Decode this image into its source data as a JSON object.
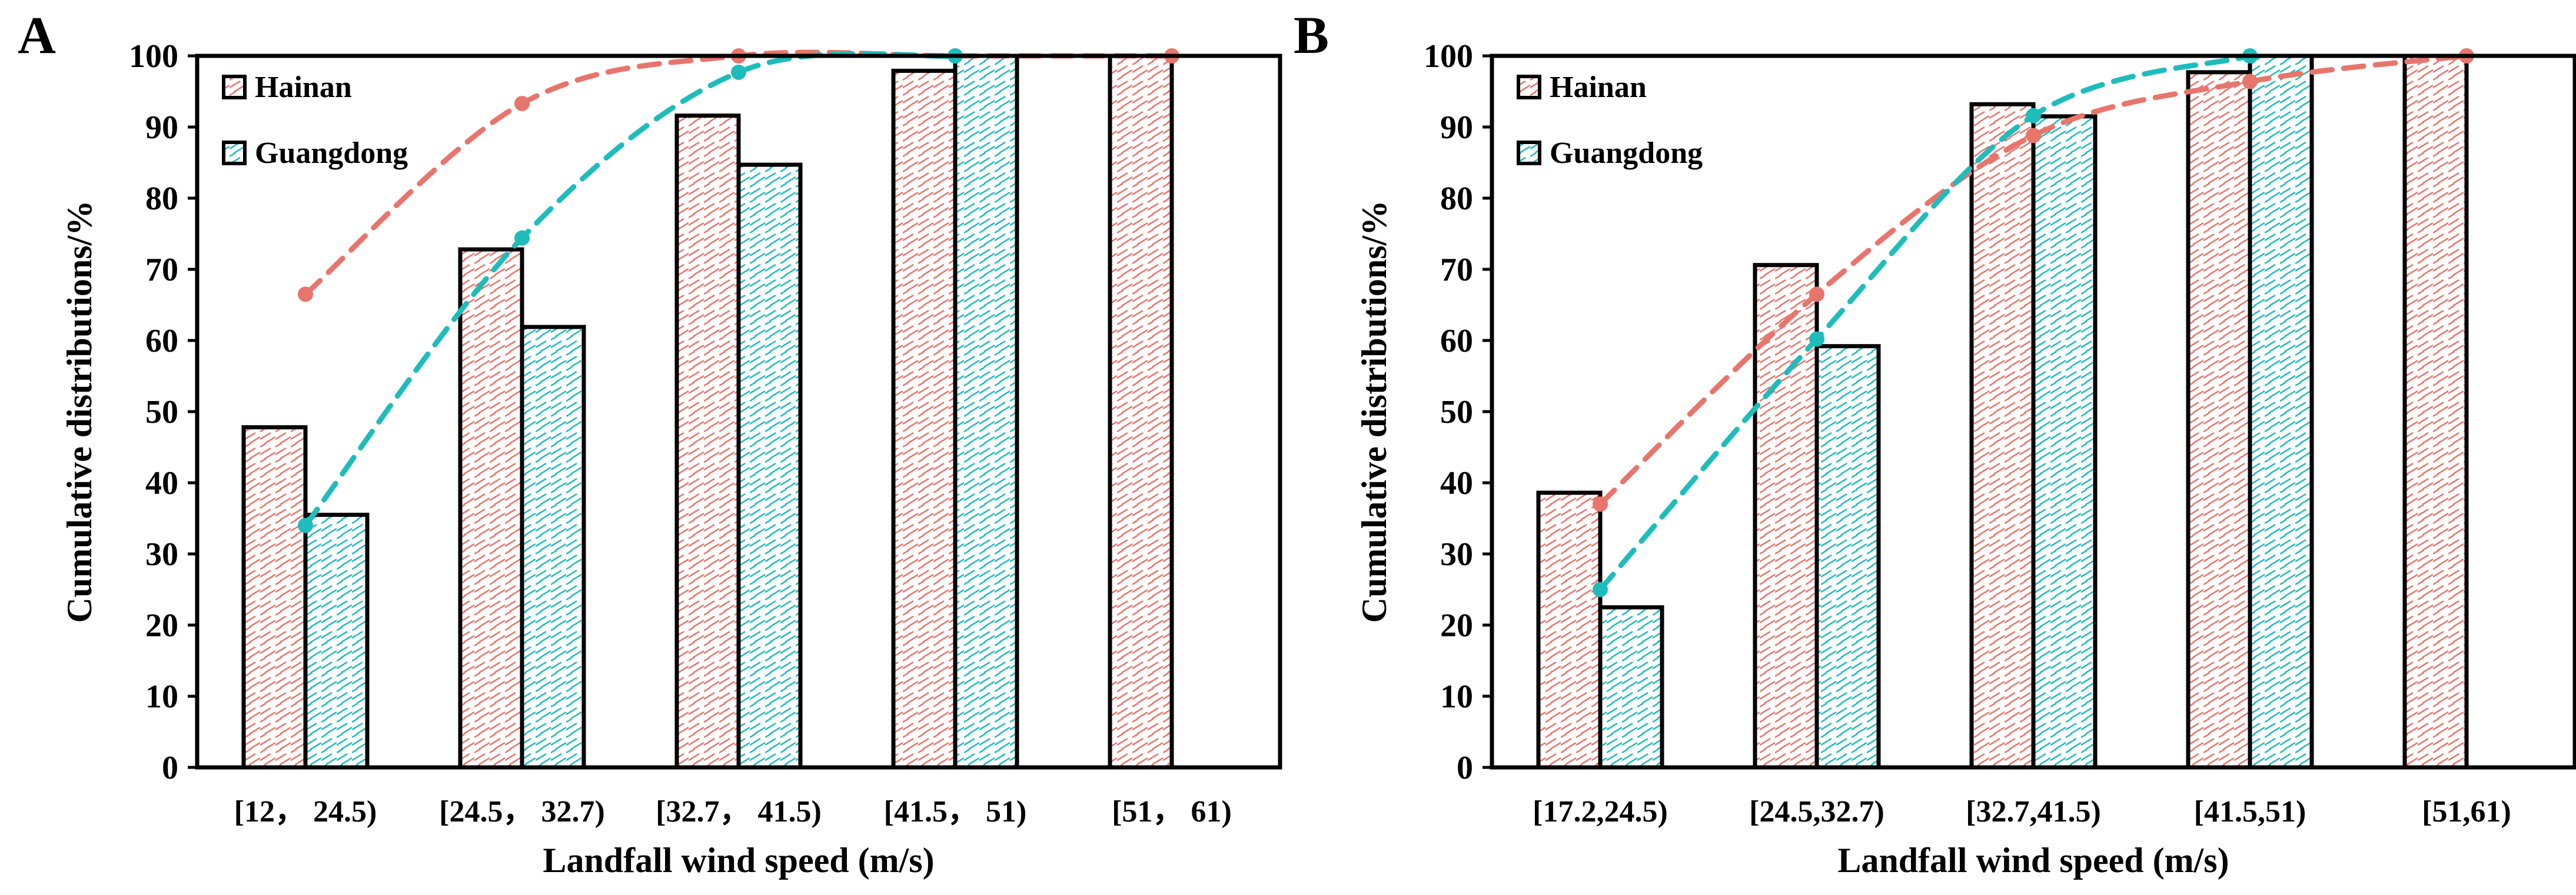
{
  "colors": {
    "hainan": "#e8756c",
    "guangdong": "#1fbcbc",
    "frame": "#000000"
  },
  "chart_data": [
    {
      "type": "bar",
      "panel_label": "A",
      "xlabel": "Landfall wind speed (m/s)",
      "ylabel": "Cumulative distributions/%",
      "ylim": [
        0,
        100
      ],
      "yticks": [
        0,
        10,
        20,
        30,
        40,
        50,
        60,
        70,
        80,
        90,
        100
      ],
      "categories": [
        "[12， 24.5)",
        "[24.5， 32.7)",
        "[32.7， 41.5)",
        "[41.5， 51)",
        "[51， 61)"
      ],
      "legend_position": "top-left",
      "series": [
        {
          "name": "Hainan",
          "values": [
            47.8,
            72.8,
            91.6,
            97.9,
            100
          ]
        },
        {
          "name": "Guangdong",
          "values": [
            35.5,
            61.9,
            84.7,
            100,
            null
          ]
        }
      ],
      "lines": [
        {
          "name": "Hainan trend",
          "x": [
            0.5,
            1.5,
            2.5,
            3.5,
            4.5
          ],
          "y": [
            66.5,
            93.3,
            100,
            100,
            100
          ]
        },
        {
          "name": "Guangdong trend",
          "x": [
            0.5,
            1.5,
            2.5,
            3.5
          ],
          "y": [
            34.0,
            74.4,
            97.7,
            100
          ]
        }
      ],
      "grid": false
    },
    {
      "type": "bar",
      "panel_label": "B",
      "xlabel": "Landfall wind speed (m/s)",
      "ylabel": "Cumulative distributions/%",
      "ylim": [
        0,
        100
      ],
      "yticks": [
        0,
        10,
        20,
        30,
        40,
        50,
        60,
        70,
        80,
        90,
        100
      ],
      "categories": [
        "[17.2,24.5)",
        "[24.5,32.7)",
        "[32.7,41.5)",
        "[41.5,51)",
        "[51,61)"
      ],
      "legend_position": "top-left",
      "series": [
        {
          "name": "Hainan",
          "values": [
            38.6,
            70.6,
            93.2,
            97.7,
            100
          ]
        },
        {
          "name": "Guangdong",
          "values": [
            22.5,
            59.2,
            91.5,
            100,
            null
          ]
        }
      ],
      "lines": [
        {
          "name": "Hainan trend",
          "x": [
            0.5,
            1.5,
            2.5,
            3.5,
            4.5
          ],
          "y": [
            37.0,
            66.5,
            88.8,
            96.4,
            100
          ]
        },
        {
          "name": "Guangdong trend",
          "x": [
            0.5,
            1.5,
            2.5,
            3.5
          ],
          "y": [
            25.0,
            60.2,
            91.6,
            100
          ]
        }
      ],
      "grid": false
    }
  ]
}
